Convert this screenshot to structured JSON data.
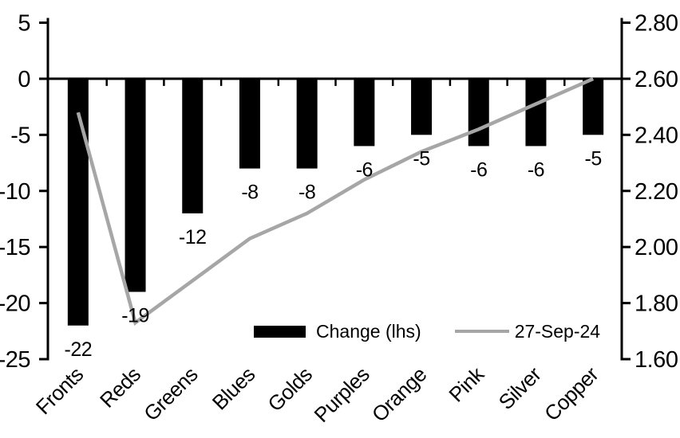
{
  "chart_data": {
    "type": "combo",
    "title": "",
    "background": "#ffffff",
    "grid": false,
    "categories": [
      "Fronts",
      "Reds",
      "Greens",
      "Blues",
      "Golds",
      "Purples",
      "Orange",
      "Pink",
      "Silver",
      "Copper"
    ],
    "series": [
      {
        "name": "Change (lhs)",
        "type": "bar",
        "axis": "left",
        "color": "#000000",
        "values": [
          -22,
          -19,
          -12,
          -8,
          -8,
          -6,
          -5,
          -6,
          -6,
          -5
        ],
        "data_labels": [
          "-22",
          "-19",
          "-12",
          "-8",
          "-8",
          "-6",
          "-5",
          "-6",
          "-6",
          "-5"
        ]
      },
      {
        "name": "27-Sep-24",
        "type": "line",
        "axis": "right",
        "color": "#a6a6a6",
        "values": [
          2.48,
          1.73,
          1.88,
          2.03,
          2.12,
          2.24,
          2.34,
          2.42,
          2.51,
          2.6
        ]
      }
    ],
    "left_axis": {
      "ticks": [
        "5",
        "0",
        "-5",
        "-10",
        "-15",
        "-20",
        "-25"
      ],
      "range": [
        -25,
        5
      ]
    },
    "right_axis": {
      "ticks": [
        "2.80",
        "2.60",
        "2.40",
        "2.20",
        "2.00",
        "1.80",
        "1.60"
      ],
      "range": [
        1.6,
        2.8
      ]
    },
    "axis_color": "#000000",
    "legend": {
      "position": "inside-bottom",
      "items": [
        {
          "label": "Change (lhs)",
          "swatch": "bar"
        },
        {
          "label": "27-Sep-24",
          "swatch": "line"
        }
      ]
    }
  }
}
